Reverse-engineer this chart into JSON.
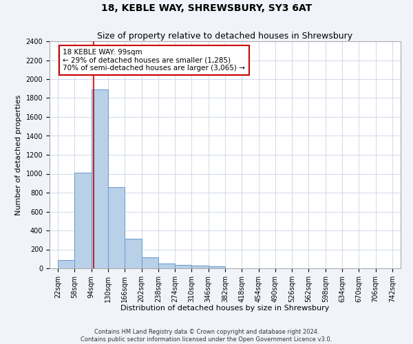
{
  "title": "18, KEBLE WAY, SHREWSBURY, SY3 6AT",
  "subtitle": "Size of property relative to detached houses in Shrewsbury",
  "xlabel": "Distribution of detached houses by size in Shrewsbury",
  "ylabel": "Number of detached properties",
  "bins": [
    "22sqm",
    "58sqm",
    "94sqm",
    "130sqm",
    "166sqm",
    "202sqm",
    "238sqm",
    "274sqm",
    "310sqm",
    "346sqm",
    "382sqm",
    "418sqm",
    "454sqm",
    "490sqm",
    "526sqm",
    "562sqm",
    "598sqm",
    "634sqm",
    "670sqm",
    "706sqm",
    "742sqm"
  ],
  "bar_edges": [
    22,
    58,
    94,
    130,
    166,
    202,
    238,
    274,
    310,
    346,
    382,
    418,
    454,
    490,
    526,
    562,
    598,
    634,
    670,
    706,
    742
  ],
  "bar_heights": [
    85,
    1010,
    1890,
    860,
    315,
    115,
    50,
    40,
    30,
    20,
    0,
    0,
    0,
    0,
    0,
    0,
    0,
    0,
    0,
    0
  ],
  "bar_color": "#b8d0e8",
  "bar_edgecolor": "#6699cc",
  "property_sqm": 99,
  "vline_color": "#cc0000",
  "annotation_text": "18 KEBLE WAY: 99sqm\n← 29% of detached houses are smaller (1,285)\n70% of semi-detached houses are larger (3,065) →",
  "annotation_box_color": "#ffffff",
  "annotation_box_edgecolor": "#cc0000",
  "ylim": [
    0,
    2400
  ],
  "yticks": [
    0,
    200,
    400,
    600,
    800,
    1000,
    1200,
    1400,
    1600,
    1800,
    2000,
    2200,
    2400
  ],
  "footer_line1": "Contains HM Land Registry data © Crown copyright and database right 2024.",
  "footer_line2": "Contains public sector information licensed under the Open Government Licence v3.0.",
  "bg_color": "#f0f4fa",
  "plot_bg_color": "#ffffff",
  "title_fontsize": 10,
  "subtitle_fontsize": 9,
  "label_fontsize": 8,
  "tick_fontsize": 7,
  "annotation_fontsize": 7.5,
  "footer_fontsize": 6
}
